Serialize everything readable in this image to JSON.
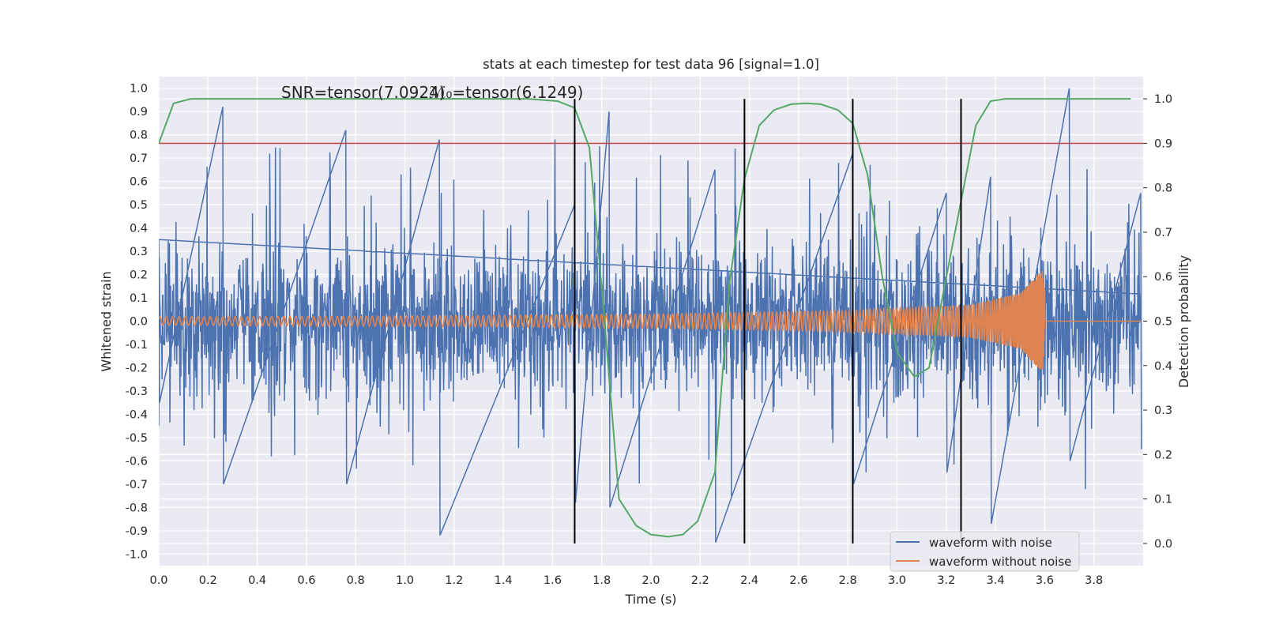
{
  "chart_data": {
    "type": "line",
    "title": "stats at each timestep for test data 96 [signal=1.0]",
    "xlabel": "Time (s)",
    "ylabel_left": "Whitened strain",
    "ylabel_right": "Detection probability",
    "xlim": [
      0.0,
      4.0
    ],
    "ylim_left": [
      -1.05,
      1.05
    ],
    "ylim_right": [
      -0.05,
      1.05
    ],
    "xticks": [
      "0.0",
      "0.2",
      "0.4",
      "0.6",
      "0.8",
      "1.0",
      "1.2",
      "1.4",
      "1.6",
      "1.8",
      "2.0",
      "2.2",
      "2.4",
      "2.6",
      "2.8",
      "3.0",
      "3.2",
      "3.4",
      "3.6",
      "3.8"
    ],
    "yticks_left": [
      "1.0",
      "0.9",
      "0.8",
      "0.7",
      "0.6",
      "0.5",
      "0.4",
      "0.3",
      "0.2",
      "0.1",
      "0.0",
      "-0.1",
      "-0.2",
      "-0.3",
      "-0.4",
      "-0.5",
      "-0.6",
      "-0.7",
      "-0.8",
      "-0.9",
      "-1.0"
    ],
    "yticks_right": [
      "1.0",
      "0.9",
      "0.8",
      "0.7",
      "0.6",
      "0.5",
      "0.4",
      "0.3",
      "0.2",
      "0.1",
      "0.0"
    ],
    "annotations": {
      "snr": "SNR=tensor(7.0924)",
      "mc": "ℳ₀=tensor(6.1249)"
    },
    "threshold": {
      "axis": "right",
      "value": 0.9,
      "color": "#c44e52"
    },
    "vertical_lines": [
      1.69,
      2.38,
      2.82,
      3.26
    ],
    "series": [
      {
        "name": "waveform with noise",
        "axis": "left",
        "color": "#4c72b0",
        "description_of_values": "whitened noisy strain, approx amplitude 0.3-0.5 with spikes up to 1.0 / -0.95",
        "envelope_points": [
          [
            0.0,
            0.35,
            -0.35
          ],
          [
            0.26,
            0.92,
            -0.7
          ],
          [
            0.76,
            0.82,
            -0.7
          ],
          [
            1.14,
            0.78,
            -0.92
          ],
          [
            1.69,
            0.5,
            -0.78
          ],
          [
            1.83,
            0.9,
            -0.8
          ],
          [
            2.26,
            0.65,
            -0.95
          ],
          [
            2.82,
            0.72,
            -0.7
          ],
          [
            3.2,
            0.55,
            -0.65
          ],
          [
            3.38,
            0.62,
            -0.87
          ],
          [
            3.7,
            1.0,
            -0.6
          ],
          [
            3.99,
            0.55,
            -0.55
          ]
        ]
      },
      {
        "name": "waveform without noise",
        "axis": "left",
        "color": "#dd8452",
        "description_of_values": "chirp whose amplitude grows from 0.02 to 0.22 and frequency rises until merger at 3.59 s, then rings down to 0",
        "amplitude": [
          [
            0.0,
            0.018
          ],
          [
            1.0,
            0.022
          ],
          [
            2.0,
            0.03
          ],
          [
            2.8,
            0.045
          ],
          [
            3.3,
            0.07
          ],
          [
            3.5,
            0.12
          ],
          [
            3.59,
            0.22
          ],
          [
            3.62,
            0.0
          ]
        ]
      },
      {
        "name": "",
        "axis": "right",
        "color": "#55a868",
        "x": [
          0.0,
          0.06,
          0.13,
          0.2,
          0.5,
          1.0,
          1.5,
          1.62,
          1.69,
          1.75,
          1.81,
          1.87,
          1.94,
          2.0,
          2.07,
          2.13,
          2.19,
          2.26,
          2.32,
          2.38,
          2.44,
          2.5,
          2.57,
          2.63,
          2.69,
          2.76,
          2.82,
          2.88,
          2.94,
          3.0,
          3.07,
          3.13,
          3.19,
          3.26,
          3.32,
          3.38,
          3.44,
          3.5,
          3.8,
          3.95
        ],
        "values": [
          0.9,
          0.99,
          1.0,
          1.0,
          1.0,
          1.0,
          1.0,
          0.995,
          0.98,
          0.89,
          0.51,
          0.1,
          0.04,
          0.02,
          0.015,
          0.02,
          0.05,
          0.16,
          0.59,
          0.82,
          0.94,
          0.975,
          0.988,
          0.99,
          0.988,
          0.975,
          0.945,
          0.83,
          0.6,
          0.43,
          0.375,
          0.395,
          0.57,
          0.77,
          0.94,
          0.995,
          1.0,
          1.0,
          1.0,
          1.0
        ]
      }
    ],
    "legend": {
      "placement": "lower right",
      "entries": [
        {
          "label": "waveform with noise",
          "color": "#4c72b0"
        },
        {
          "label": "waveform without noise",
          "color": "#dd8452"
        }
      ]
    },
    "grid": true,
    "background": "#eaeaf2"
  }
}
